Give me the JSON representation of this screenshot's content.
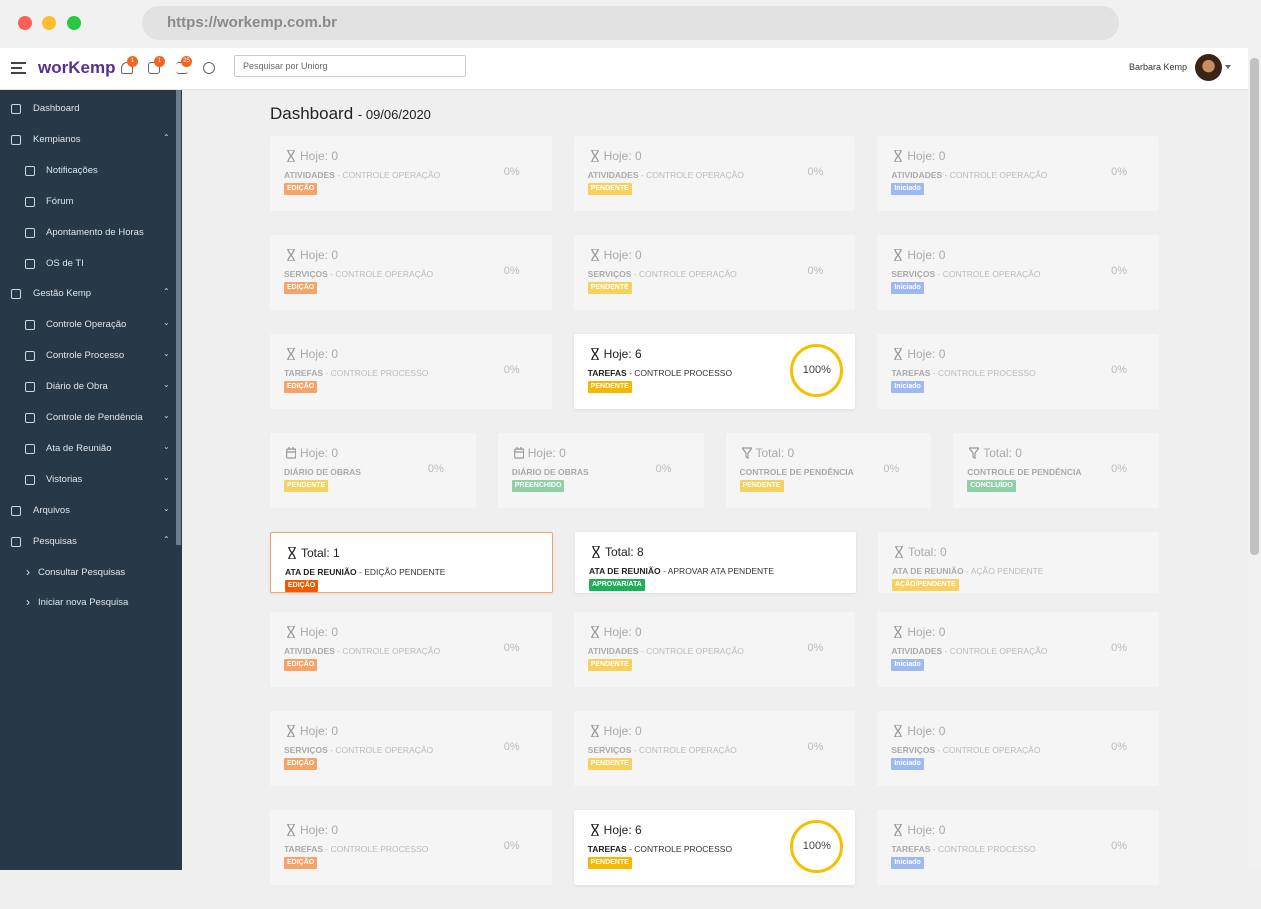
{
  "browser": {
    "url": "https://workemp.com.br"
  },
  "header": {
    "logo": "worKemp",
    "badges": [
      "1",
      "1",
      "25"
    ],
    "search_placeholder": "Pesquisar por Uniorg",
    "user": "Barbara Kemp"
  },
  "sidebar": {
    "items": [
      {
        "label": "Dashboard",
        "level": 0
      },
      {
        "label": "Kempianos",
        "level": 0,
        "chevron": "up"
      },
      {
        "label": "Notificações",
        "level": 1
      },
      {
        "label": "Fórum",
        "level": 1
      },
      {
        "label": "Apontamento de Horas",
        "level": 1
      },
      {
        "label": "OS de TI",
        "level": 1
      },
      {
        "label": "Gestão Kemp",
        "level": 0,
        "chevron": "up"
      },
      {
        "label": "Controle Operação",
        "level": 1,
        "chevron": "down"
      },
      {
        "label": "Controle Processo",
        "level": 1,
        "chevron": "down"
      },
      {
        "label": "Diário de Obra",
        "level": 1,
        "chevron": "down"
      },
      {
        "label": "Controle de Pendência",
        "level": 1,
        "chevron": "down"
      },
      {
        "label": "Ata de Reunião",
        "level": 1,
        "chevron": "down"
      },
      {
        "label": "Vistorias",
        "level": 1,
        "chevron": "down"
      },
      {
        "label": "Arquivos",
        "level": 0,
        "chevron": "down"
      },
      {
        "label": "Pesquisas",
        "level": 0,
        "chevron": "up"
      },
      {
        "label": "Consultar Pesquisas",
        "level": 2
      },
      {
        "label": "Iniciar nova Pesquisa",
        "level": 2
      }
    ]
  },
  "page": {
    "title": "Dashboard",
    "date": "- 09/06/2020"
  },
  "rows": [
    {
      "cards": [
        {
          "icon": "hourglass",
          "counter": "Hoje: 0",
          "title": "ATIVIDADES",
          "subtitle": "- CONTROLE OPERAÇÃO",
          "badge": "EDIÇÃO",
          "badge_color": "#f5a368",
          "percent": "0%",
          "active": false
        },
        {
          "icon": "hourglass",
          "counter": "Hoje: 0",
          "title": "ATIVIDADES",
          "subtitle": "- CONTROLE OPERAÇÃO",
          "badge": "PENDENTE",
          "badge_color": "#f7d05e",
          "percent": "0%",
          "active": false
        },
        {
          "icon": "hourglass",
          "counter": "Hoje: 0",
          "title": "ATIVIDADES",
          "subtitle": "- CONTROLE OPERAÇÃO",
          "badge": "Iniciado",
          "badge_color": "#9db9ef",
          "percent": "0%",
          "active": false
        }
      ]
    },
    {
      "cards": [
        {
          "icon": "hourglass",
          "counter": "Hoje: 0",
          "title": "SERVIÇOS",
          "subtitle": "- CONTROLE OPERAÇÃO",
          "badge": "EDIÇÃO",
          "badge_color": "#f5a368",
          "percent": "0%",
          "active": false
        },
        {
          "icon": "hourglass",
          "counter": "Hoje: 0",
          "title": "SERVIÇOS",
          "subtitle": "- CONTROLE OPERAÇÃO",
          "badge": "PENDENTE",
          "badge_color": "#f7d05e",
          "percent": "0%",
          "active": false
        },
        {
          "icon": "hourglass",
          "counter": "Hoje: 0",
          "title": "SERVIÇOS",
          "subtitle": "- CONTROLE OPERAÇÃO",
          "badge": "Iniciado",
          "badge_color": "#9db9ef",
          "percent": "0%",
          "active": false
        }
      ]
    },
    {
      "cards": [
        {
          "icon": "hourglass",
          "counter": "Hoje: 0",
          "title": "TAREFAS",
          "subtitle": "- CONTROLE PROCESSO",
          "badge": "EDIÇÃO",
          "badge_color": "#f5a368",
          "percent": "0%",
          "active": false
        },
        {
          "icon": "hourglass",
          "counter": "Hoje: 6",
          "title": "TAREFAS",
          "subtitle": "- CONTROLE PROCESSO",
          "badge": "PENDENTE",
          "badge_color": "#f5b800",
          "percent": "100%",
          "active": true
        },
        {
          "icon": "hourglass",
          "counter": "Hoje: 0",
          "title": "TAREFAS",
          "subtitle": "- CONTROLE PROCESSO",
          "badge": "Iniciado",
          "badge_color": "#9db9ef",
          "percent": "0%",
          "active": false
        }
      ]
    },
    {
      "cards": [
        {
          "icon": "calendar",
          "counter": "Hoje: 0",
          "title": "DIÁRIO DE OBRAS",
          "badge": "PENDENTE",
          "badge_color": "#f7d05e",
          "percent": "0%",
          "active": false
        },
        {
          "icon": "calendar",
          "counter": "Hoje: 0",
          "title": "DIÁRIO DE OBRAS",
          "badge": "PREENCHIDO",
          "badge_color": "#8fd0a6",
          "percent": "0%",
          "active": false
        },
        {
          "icon": "filter",
          "counter": "Total: 0",
          "title": "CONTROLE DE PENDÊNCIA",
          "badge": "PENDENTE",
          "badge_color": "#f7d05e",
          "percent": "0%",
          "active": false
        },
        {
          "icon": "filter",
          "counter": "Total: 0",
          "title": "CONTROLE DE PENDÊNCIA",
          "badge": "CONCLUÍDO",
          "badge_color": "#8fd0a6",
          "percent": "0%",
          "active": false
        }
      ]
    },
    {
      "cards": [
        {
          "icon": "hourglass",
          "counter": "Total: 1",
          "title": "ATA DE REUNIÃO",
          "subtitle": "- EDIÇÃO PENDENTE",
          "badge": "EDIÇÃO",
          "badge_color": "#f05a00",
          "active": true,
          "highlight": true
        },
        {
          "icon": "hourglass",
          "counter": "Total: 8",
          "title": "ATA DE REUNIÃO",
          "subtitle": "- APROVAR ATA PENDENTE",
          "badge": "APROVAR/ATA",
          "badge_color": "#1fae5a",
          "active": true
        },
        {
          "icon": "hourglass",
          "counter": "Total: 0",
          "title": "ATA DE REUNIÃO",
          "subtitle": "- AÇÃO PENDENTE",
          "badge": "AÇÃO/PENDENTE",
          "badge_color": "#f7d05e",
          "active": false
        }
      ]
    },
    {
      "cards": [
        {
          "icon": "hourglass",
          "counter": "Hoje: 0",
          "title": "ATIVIDADES",
          "subtitle": "- CONTROLE OPERAÇÃO",
          "badge": "EDIÇÃO",
          "badge_color": "#f5a368",
          "percent": "0%",
          "active": false
        },
        {
          "icon": "hourglass",
          "counter": "Hoje: 0",
          "title": "ATIVIDADES",
          "subtitle": "- CONTROLE OPERAÇÃO",
          "badge": "PENDENTE",
          "badge_color": "#f7d05e",
          "percent": "0%",
          "active": false
        },
        {
          "icon": "hourglass",
          "counter": "Hoje: 0",
          "title": "ATIVIDADES",
          "subtitle": "- CONTROLE OPERAÇÃO",
          "badge": "Iniciado",
          "badge_color": "#9db9ef",
          "percent": "0%",
          "active": false
        }
      ]
    },
    {
      "cards": [
        {
          "icon": "hourglass",
          "counter": "Hoje: 0",
          "title": "SERVIÇOS",
          "subtitle": "- CONTROLE OPERAÇÃO",
          "badge": "EDIÇÃO",
          "badge_color": "#f5a368",
          "percent": "0%",
          "active": false
        },
        {
          "icon": "hourglass",
          "counter": "Hoje: 0",
          "title": "SERVIÇOS",
          "subtitle": "- CONTROLE OPERAÇÃO",
          "badge": "PENDENTE",
          "badge_color": "#f7d05e",
          "percent": "0%",
          "active": false
        },
        {
          "icon": "hourglass",
          "counter": "Hoje: 0",
          "title": "SERVIÇOS",
          "subtitle": "- CONTROLE OPERAÇÃO",
          "badge": "Iniciado",
          "badge_color": "#9db9ef",
          "percent": "0%",
          "active": false
        }
      ]
    },
    {
      "cards": [
        {
          "icon": "hourglass",
          "counter": "Hoje: 0",
          "title": "TAREFAS",
          "subtitle": "- CONTROLE PROCESSO",
          "badge": "EDIÇÃO",
          "badge_color": "#f5a368",
          "percent": "0%",
          "active": false
        },
        {
          "icon": "hourglass",
          "counter": "Hoje: 6",
          "title": "TAREFAS",
          "subtitle": "- CONTROLE PROCESSO",
          "badge": "PENDENTE",
          "badge_color": "#f5b800",
          "percent": "100%",
          "active": true
        },
        {
          "icon": "hourglass",
          "counter": "Hoje: 0",
          "title": "TAREFAS",
          "subtitle": "- CONTROLE PROCESSO",
          "badge": "Iniciado",
          "badge_color": "#9db9ef",
          "percent": "0%",
          "active": false
        }
      ]
    }
  ]
}
